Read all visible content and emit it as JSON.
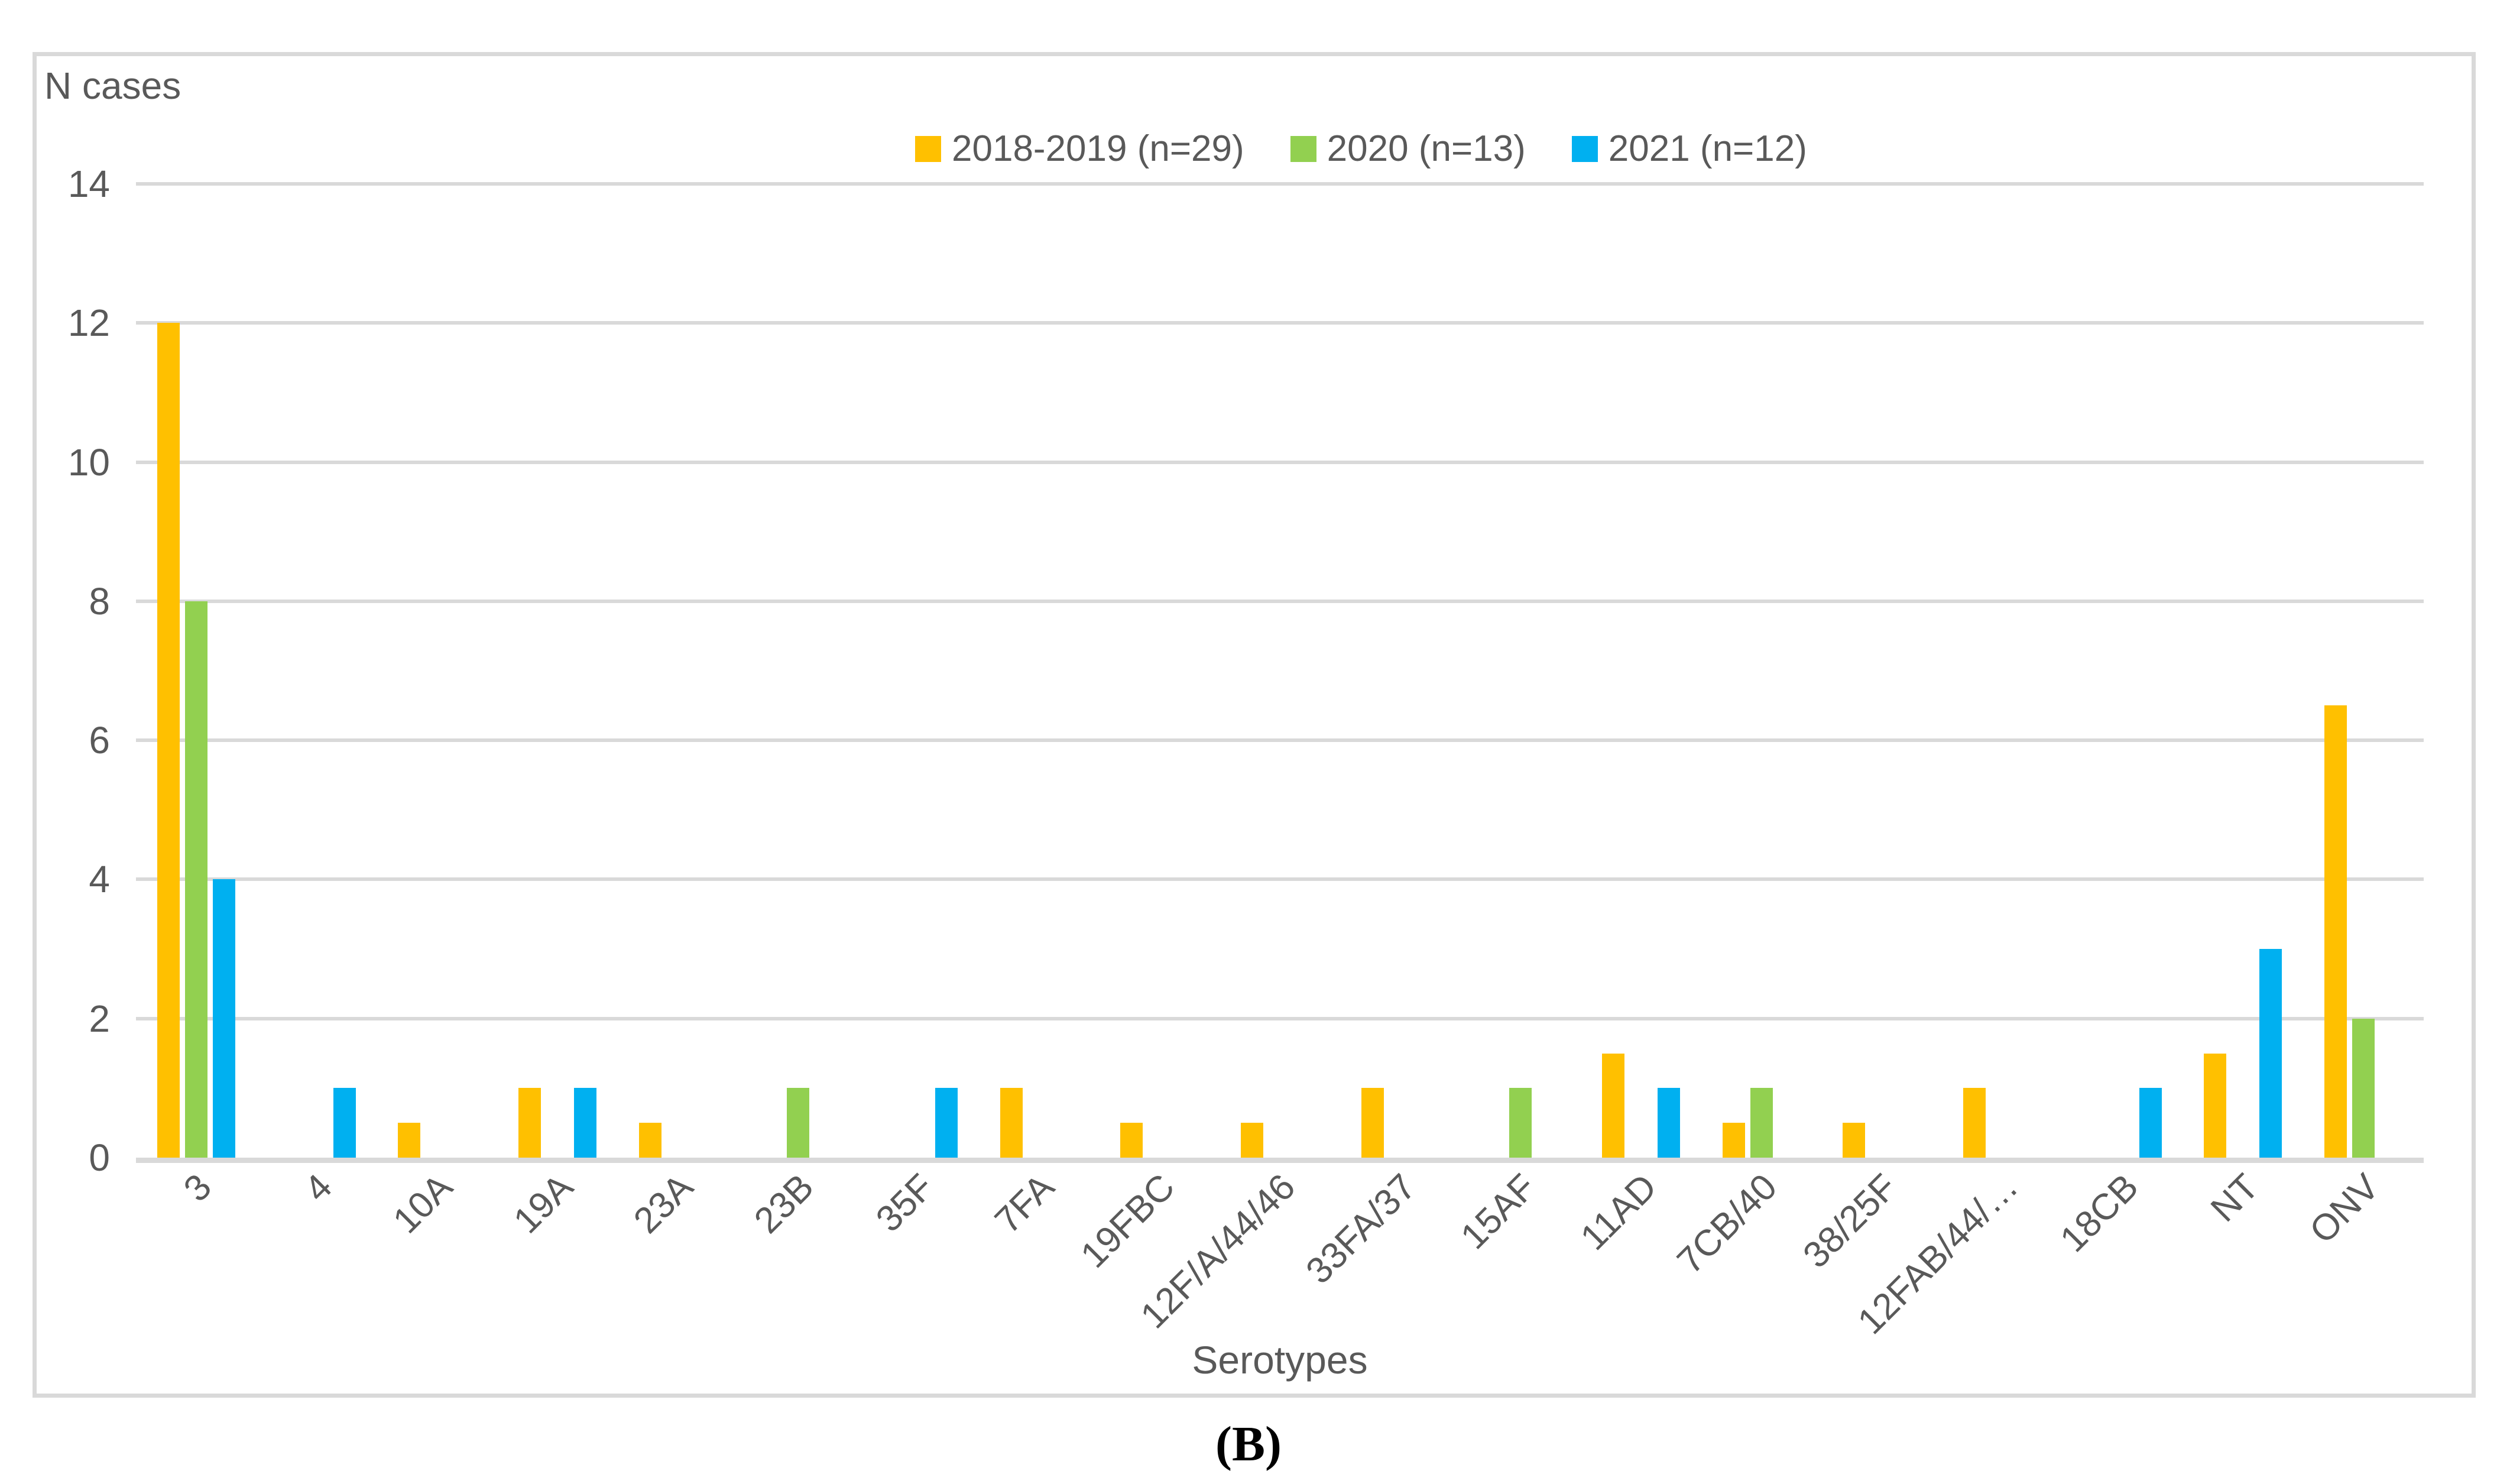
{
  "figure": {
    "y_axis_title": "N cases",
    "x_axis_title": "Serotypes",
    "caption": "(B)"
  },
  "legend": [
    {
      "label": "2018-2019 (n=29)",
      "color": "#FFC000"
    },
    {
      "label": "2020 (n=13)",
      "color": "#92D050"
    },
    {
      "label": "2021 (n=12)",
      "color": "#00B0F0"
    }
  ],
  "chart_data": {
    "type": "bar",
    "title": "",
    "xlabel": "Serotypes",
    "ylabel": "N cases",
    "ylim": [
      0,
      14
    ],
    "yticks": [
      0,
      2,
      4,
      6,
      8,
      10,
      12,
      14
    ],
    "grid": true,
    "legend_position": "top-center",
    "categories": [
      "3",
      "4",
      "10A",
      "19A",
      "23A",
      "23B",
      "35F",
      "7FA",
      "19FBC",
      "12F/A/44/46",
      "33FA/37",
      "15AF",
      "11AD",
      "7CB/40",
      "38/25F",
      "12FAB/44/…",
      "18CB",
      "NT",
      "ONV"
    ],
    "series": [
      {
        "name": "2018-2019 (n=29)",
        "color": "#FFC000",
        "values": [
          12,
          null,
          0.5,
          1,
          0.5,
          null,
          null,
          1,
          0.5,
          0.5,
          1,
          null,
          1.5,
          0.5,
          0.5,
          1,
          null,
          1.5,
          6.5
        ]
      },
      {
        "name": "2020 (n=13)",
        "color": "#92D050",
        "values": [
          8,
          null,
          null,
          null,
          null,
          1,
          null,
          null,
          null,
          null,
          null,
          1,
          null,
          1,
          null,
          null,
          null,
          null,
          2
        ]
      },
      {
        "name": "2021 (n=12)",
        "color": "#00B0F0",
        "values": [
          4,
          1,
          null,
          1,
          null,
          null,
          1,
          null,
          null,
          null,
          null,
          null,
          1,
          null,
          null,
          null,
          1,
          3,
          null
        ]
      }
    ],
    "colors": {
      "grid": "#D9D9D9",
      "axis_text": "#595959",
      "border": "#D9D9D9"
    }
  }
}
